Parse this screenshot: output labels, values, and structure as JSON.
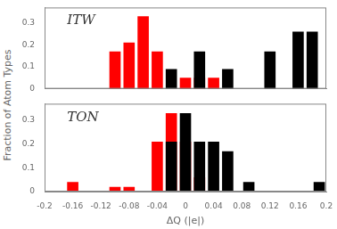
{
  "chart_data": [
    {
      "type": "bar",
      "title": "ITW",
      "ylabel": "Fraction of Atom Types",
      "series": [
        {
          "color": "#ff0000",
          "x": [
            -0.1,
            -0.08,
            -0.06,
            -0.04,
            0.0,
            0.02,
            0.04
          ],
          "values": [
            0.17,
            0.21,
            0.33,
            0.17,
            0.05,
            0.05,
            0.05
          ]
        },
        {
          "color": "#000000",
          "x": [
            -0.02,
            0.02,
            0.06,
            0.12,
            0.16,
            0.18
          ],
          "values": [
            0.09,
            0.17,
            0.09,
            0.17,
            0.26,
            0.26
          ]
        }
      ],
      "xlim": [
        -0.2,
        0.2
      ],
      "xticks": [
        -0.2,
        -0.16,
        -0.12,
        -0.08,
        -0.04,
        0,
        0.04,
        0.08,
        0.12,
        0.16,
        0.2
      ],
      "ylim": [
        0,
        0.37
      ],
      "yticks": [
        0,
        0.1,
        0.2,
        0.3
      ],
      "grid": false,
      "tick_labels": "y"
    },
    {
      "type": "bar",
      "title": "TON",
      "xlabel": "ΔQ (|e|)",
      "series": [
        {
          "color": "#ff0000",
          "x": [
            -0.16,
            -0.1,
            -0.08,
            -0.04,
            -0.02,
            0.0,
            0.02
          ],
          "values": [
            0.04,
            0.02,
            0.02,
            0.21,
            0.33,
            0.21,
            0.06
          ]
        },
        {
          "color": "#000000",
          "x": [
            -0.02,
            0.0,
            0.02,
            0.04,
            0.06,
            0.09,
            0.19
          ],
          "values": [
            0.21,
            0.33,
            0.21,
            0.21,
            0.17,
            0.04,
            0.04
          ]
        }
      ],
      "xlim": [
        -0.2,
        0.2
      ],
      "xticks": [
        -0.2,
        -0.16,
        -0.12,
        -0.08,
        -0.04,
        0,
        0.04,
        0.08,
        0.12,
        0.16,
        0.2
      ],
      "ylim": [
        0,
        0.37
      ],
      "yticks": [
        0,
        0.1,
        0.2,
        0.3
      ],
      "grid": false
    }
  ]
}
